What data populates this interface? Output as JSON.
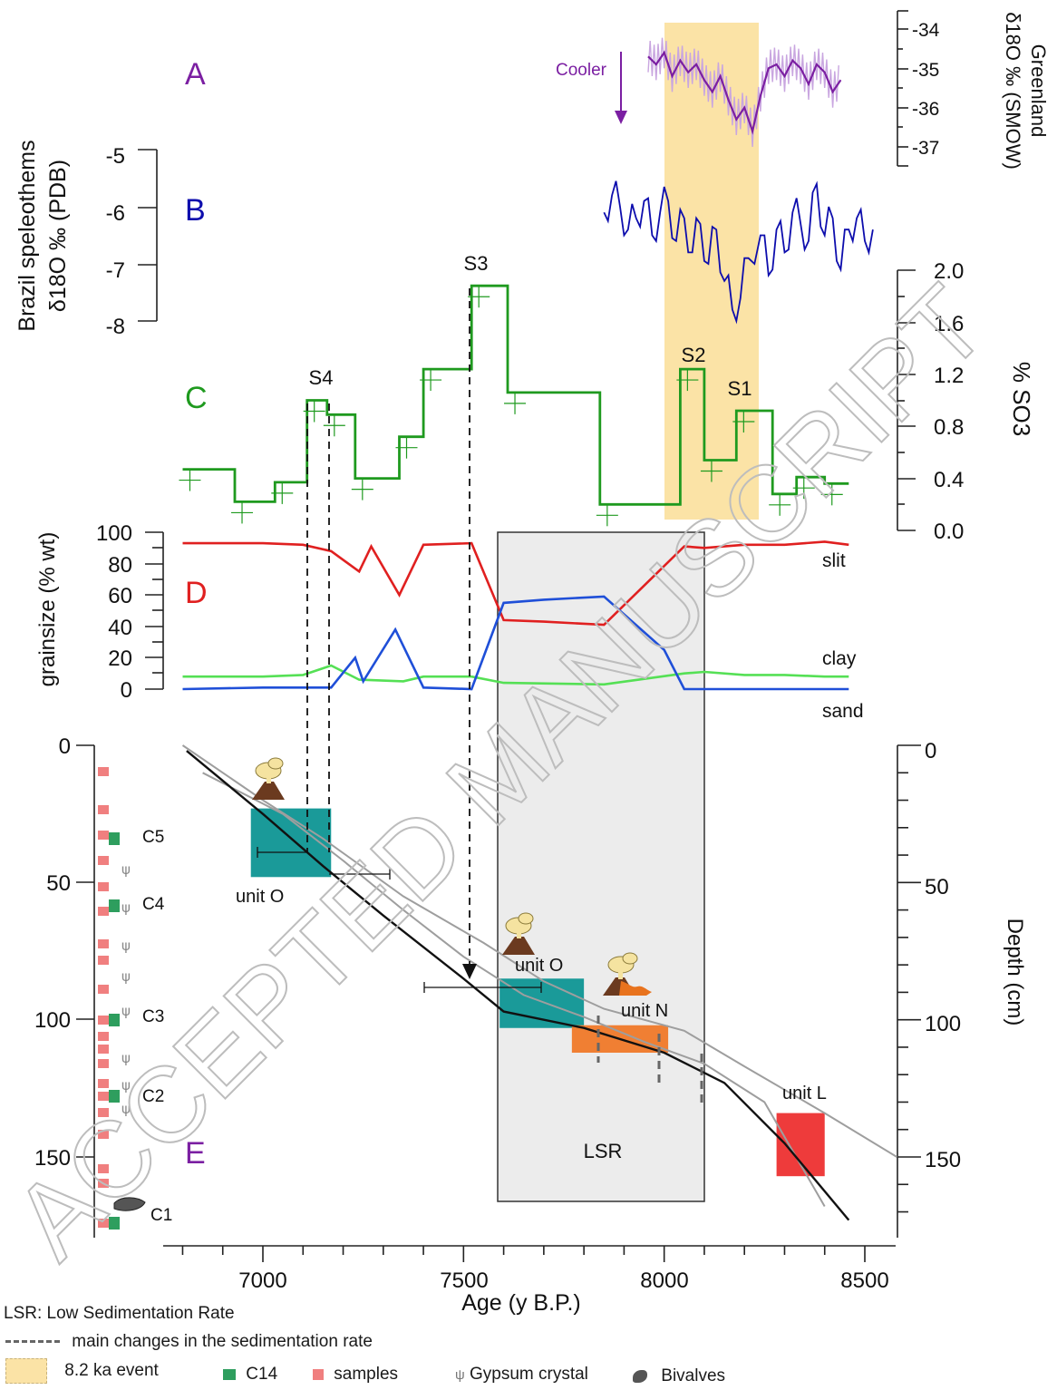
{
  "figure": {
    "panel_labels": {
      "A": "A",
      "B": "B",
      "C": "C",
      "D": "D",
      "E": "E"
    },
    "watermark": "ACCEPTED MANUSCRIPT",
    "highlight_color": "#fbe3a6"
  },
  "chart_data": [
    {
      "panel": "A",
      "type": "line",
      "ylabel_line1": "Greenland",
      "ylabel_line2": "δ18O ‰ (SMOW)",
      "yticks": [
        "-34",
        "-35",
        "-36",
        "-37"
      ],
      "ylim": [
        -37.5,
        -33.6
      ],
      "annotation": "Cooler",
      "color_smooth": "#7b1fa2",
      "color_raw": "#c9a6e0",
      "series": [
        {
          "values_x": [
            7960,
            7980,
            8000,
            8020,
            8040,
            8060,
            8080,
            8100,
            8120,
            8140,
            8160,
            8180,
            8200,
            8220,
            8240,
            8260,
            8280,
            8300,
            8320,
            8340,
            8360,
            8380,
            8400,
            8420,
            8440
          ],
          "values_y": [
            -34.7,
            -34.9,
            -34.6,
            -35.2,
            -34.8,
            -35.1,
            -34.9,
            -35.3,
            -35.6,
            -35.2,
            -35.8,
            -36.3,
            -36.0,
            -36.6,
            -35.7,
            -35.0,
            -34.9,
            -35.2,
            -34.8,
            -35.0,
            -35.4,
            -34.9,
            -35.1,
            -35.6,
            -35.3
          ]
        }
      ]
    },
    {
      "panel": "B",
      "type": "line",
      "ylabel_line1": "Brazil speleothems",
      "ylabel_line2": "δ18O ‰ (PDB)",
      "yticks": [
        "-5",
        "-6",
        "-7",
        "-8"
      ],
      "ylim": [
        -8,
        -5
      ],
      "color": "#0d0dad",
      "x": [
        7850,
        7870,
        7890,
        7910,
        7930,
        7950,
        7970,
        7990,
        8010,
        8030,
        8050,
        8070,
        8090,
        8110,
        8130,
        8150,
        8170,
        8190,
        8210,
        8240,
        8260,
        8280,
        8300,
        8320,
        8340,
        8360,
        8380,
        8400,
        8420,
        8440,
        8460,
        8480,
        8500,
        8520
      ],
      "y": [
        -6.1,
        -5.8,
        -6.0,
        -6.4,
        -6.2,
        -5.9,
        -6.5,
        -6.1,
        -5.9,
        -6.6,
        -6.2,
        -6.8,
        -6.3,
        -7.0,
        -6.4,
        -7.3,
        -7.8,
        -7.6,
        -6.9,
        -6.5,
        -7.2,
        -6.4,
        -6.8,
        -6.1,
        -6.3,
        -6.6,
        -5.6,
        -6.5,
        -6.2,
        -7.1,
        -6.4,
        -6.2,
        -6.6,
        -6.4
      ]
    },
    {
      "panel": "C",
      "type": "line",
      "ylabel": "% SO3",
      "yticks": [
        "0.0",
        "0.4",
        "0.8",
        "1.2",
        "1.6",
        "2.0"
      ],
      "ylim": [
        0,
        2.0
      ],
      "color": "#1f9a1f",
      "point_labels": [
        "S4",
        "S3",
        "S2",
        "S1"
      ],
      "steps": [
        {
          "x0": 6800,
          "x1": 6930,
          "y": 0.47
        },
        {
          "x0": 6930,
          "x1": 7030,
          "y": 0.22
        },
        {
          "x0": 7030,
          "x1": 7110,
          "y": 0.37
        },
        {
          "x0": 7110,
          "x1": 7160,
          "y": 1.0
        },
        {
          "x0": 7160,
          "x1": 7230,
          "y": 0.89
        },
        {
          "x0": 7230,
          "x1": 7340,
          "y": 0.4
        },
        {
          "x0": 7340,
          "x1": 7400,
          "y": 0.72
        },
        {
          "x0": 7400,
          "x1": 7520,
          "y": 1.24
        },
        {
          "x0": 7520,
          "x1": 7610,
          "y": 1.88
        },
        {
          "x0": 7610,
          "x1": 7840,
          "y": 1.06
        },
        {
          "x0": 7840,
          "x1": 8040,
          "y": 0.2
        },
        {
          "x0": 8040,
          "x1": 8100,
          "y": 1.24
        },
        {
          "x0": 8100,
          "x1": 8180,
          "y": 0.54
        },
        {
          "x0": 8180,
          "x1": 8270,
          "y": 0.92
        },
        {
          "x0": 8270,
          "x1": 8330,
          "y": 0.28
        },
        {
          "x0": 8330,
          "x1": 8400,
          "y": 0.41
        },
        {
          "x0": 8400,
          "x1": 8460,
          "y": 0.36
        }
      ]
    },
    {
      "panel": "D",
      "type": "line",
      "ylabel": "grainsize (% wt)",
      "yticks": [
        "100",
        "80",
        "60",
        "40",
        "20",
        "0"
      ],
      "ylim": [
        0,
        100
      ],
      "series": [
        {
          "name": "slit",
          "color": "#e02020",
          "x": [
            6800,
            7000,
            7100,
            7170,
            7240,
            7270,
            7340,
            7400,
            7520,
            7600,
            7700,
            7850,
            8050,
            8100,
            8200,
            8300,
            8400,
            8460
          ],
          "y": [
            93,
            93,
            92,
            88,
            75,
            91,
            60,
            92,
            93,
            44,
            43,
            41,
            91,
            90,
            92,
            92,
            94,
            92
          ]
        },
        {
          "name": "clay",
          "color": "#55e055",
          "x": [
            6800,
            7000,
            7100,
            7170,
            7240,
            7350,
            7400,
            7520,
            7600,
            7850,
            8050,
            8100,
            8200,
            8300,
            8400,
            8460
          ],
          "y": [
            8,
            8,
            9,
            15,
            6,
            5,
            8,
            8,
            4,
            3,
            10,
            11,
            9,
            9,
            8,
            8
          ]
        },
        {
          "name": "sand",
          "color": "#1f4fd8",
          "x": [
            6800,
            7000,
            7100,
            7170,
            7230,
            7250,
            7330,
            7400,
            7520,
            7600,
            7700,
            7850,
            8000,
            8050,
            8200,
            8460
          ],
          "y": [
            0,
            1,
            1,
            1,
            20,
            5,
            38,
            1,
            0,
            55,
            57,
            59,
            25,
            0,
            0,
            0
          ]
        }
      ]
    },
    {
      "panel": "E",
      "type": "line",
      "xlabel": "Age (y B.P.)",
      "ylabel": "Depth (cm)",
      "xticks": [
        "7000",
        "7500",
        "8000",
        "8500"
      ],
      "yticks": [
        "0",
        "50",
        "100",
        "150"
      ],
      "xlim": [
        6780,
        8580
      ],
      "ylim": [
        0,
        180
      ],
      "annotations": {
        "lsr": "LSR",
        "units": [
          "unit O",
          "unit O",
          "unit N",
          "unit L"
        ],
        "samples": [
          "C5",
          "C4",
          "C3",
          "C2",
          "C1"
        ]
      },
      "age_model": {
        "x": [
          6810,
          7000,
          7150,
          7300,
          7500,
          7600,
          7800,
          8000,
          8150,
          8300,
          8460
        ],
        "y": [
          2,
          25,
          44,
          62,
          85,
          97,
          103,
          112,
          123,
          145,
          173
        ]
      },
      "upper_bound": {
        "x": [
          6850,
          7050,
          7200,
          7350,
          7500,
          7650,
          7800,
          7950,
          8100,
          8250,
          8400
        ],
        "y": [
          10,
          25,
          42,
          60,
          77,
          91,
          99,
          108,
          116,
          130,
          168
        ]
      },
      "lower_bound": {
        "x": [
          6800,
          7000,
          7150,
          7350,
          7550,
          7700,
          7850,
          8050,
          8200,
          8400,
          8580
        ],
        "y": [
          0,
          20,
          34,
          55,
          72,
          86,
          96,
          104,
          117,
          134,
          150
        ]
      },
      "boxes": [
        {
          "label": "unit O",
          "x0": 6970,
          "x1": 7170,
          "y0": 23,
          "y1": 48,
          "color": "#1a9a99"
        },
        {
          "label": "unit O",
          "x0": 7590,
          "x1": 7800,
          "y0": 85,
          "y1": 103,
          "color": "#1a9a99"
        },
        {
          "label": "unit N",
          "x0": 7770,
          "x1": 8010,
          "y0": 102,
          "y1": 112,
          "color": "#f07f33"
        },
        {
          "label": "unit L",
          "x0": 8280,
          "x1": 8400,
          "y0": 134,
          "y1": 157,
          "color": "#ee3b3b"
        }
      ],
      "lsr_range": [
        7590,
        8110
      ]
    }
  ],
  "legend": {
    "lsr": "LSR: Low Sedimentation Rate",
    "dashed": "main changes in the sedimentation rate",
    "event": "8.2 ka event",
    "c14": "C14",
    "samples": "samples",
    "gypsum": "Gypsum crystal",
    "bivalves": "Bivalves"
  }
}
